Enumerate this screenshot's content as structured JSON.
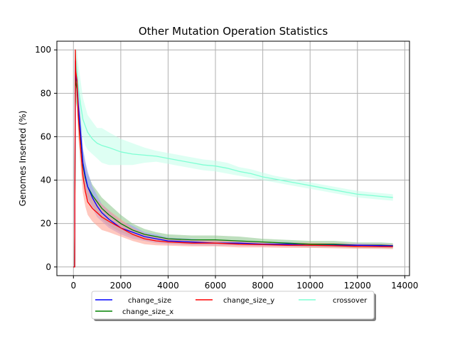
{
  "chart_data": {
    "type": "line",
    "title": "Other Mutation Operation Statistics",
    "xlabel": "",
    "ylabel": "Genomes Inserted (%)",
    "xlim": [
      -700,
      14200
    ],
    "ylim": [
      -4,
      104
    ],
    "xticks": [
      0,
      2000,
      4000,
      6000,
      8000,
      10000,
      12000,
      14000
    ],
    "yticks": [
      0,
      20,
      40,
      60,
      80,
      100
    ],
    "grid": true,
    "legend_position": "below-plot",
    "series": [
      {
        "name": "change_size",
        "color": "#0000ff",
        "band_color": "#9999ff",
        "x": [
          0,
          50,
          80,
          100,
          150,
          200,
          300,
          400,
          500,
          600,
          800,
          1000,
          1200,
          1500,
          2000,
          2500,
          3000,
          3500,
          4000,
          5000,
          6000,
          7000,
          8000,
          9000,
          10000,
          11000,
          12000,
          13000,
          13500
        ],
        "y": [
          0,
          0,
          95,
          88,
          85,
          75,
          62,
          48,
          42,
          37,
          32,
          28,
          25,
          22,
          18,
          16,
          14,
          13,
          12,
          11.5,
          11,
          11,
          10.5,
          10.5,
          10,
          10,
          10,
          9.8,
          9.7
        ],
        "band": [
          [
            0,
            0
          ],
          [
            0,
            0
          ],
          [
            86,
            100
          ],
          [
            80,
            94
          ],
          [
            77,
            92
          ],
          [
            67,
            83
          ],
          [
            54,
            70
          ],
          [
            41,
            55
          ],
          [
            35,
            49
          ],
          [
            31,
            44
          ],
          [
            27,
            37
          ],
          [
            23,
            33
          ],
          [
            21,
            29
          ],
          [
            18,
            26
          ],
          [
            15,
            21
          ],
          [
            13,
            19
          ],
          [
            12,
            16
          ],
          [
            11,
            15
          ],
          [
            10.5,
            13.5
          ],
          [
            10,
            13
          ],
          [
            9.8,
            12.2
          ],
          [
            9.8,
            12.2
          ],
          [
            9.5,
            11.5
          ],
          [
            9.5,
            11.5
          ],
          [
            9.2,
            10.8
          ],
          [
            9.2,
            10.8
          ],
          [
            9.2,
            10.8
          ],
          [
            9,
            10.6
          ],
          [
            9,
            10.4
          ]
        ]
      },
      {
        "name": "change_size_x",
        "color": "#008000",
        "band_color": "#88c488",
        "x": [
          0,
          50,
          80,
          100,
          150,
          200,
          300,
          400,
          500,
          600,
          800,
          1000,
          1200,
          1500,
          2000,
          2500,
          3000,
          3500,
          4000,
          5000,
          6000,
          7000,
          8000,
          9000,
          10000,
          11000,
          12000,
          13000,
          13500
        ],
        "y": [
          0,
          0,
          90,
          85,
          82,
          72,
          60,
          47,
          41,
          37,
          33,
          30,
          27,
          24,
          20,
          17,
          15,
          14,
          13,
          12.5,
          12.5,
          12,
          11.5,
          11,
          10.5,
          10.5,
          10,
          10,
          9.8
        ],
        "band": [
          [
            0,
            0
          ],
          [
            0,
            0
          ],
          [
            80,
            100
          ],
          [
            76,
            93
          ],
          [
            73,
            90
          ],
          [
            64,
            80
          ],
          [
            52,
            68
          ],
          [
            40,
            54
          ],
          [
            35,
            48
          ],
          [
            32,
            43
          ],
          [
            28,
            38
          ],
          [
            25,
            35
          ],
          [
            22,
            32
          ],
          [
            19,
            29
          ],
          [
            16,
            24
          ],
          [
            14,
            20
          ],
          [
            12.5,
            17.5
          ],
          [
            12,
            16
          ],
          [
            11,
            15
          ],
          [
            10.5,
            14.5
          ],
          [
            10.5,
            14.5
          ],
          [
            10,
            14
          ],
          [
            10,
            13
          ],
          [
            9.5,
            12.5
          ],
          [
            9,
            12
          ],
          [
            9,
            12
          ],
          [
            8.7,
            11.3
          ],
          [
            8.7,
            11.3
          ],
          [
            8.5,
            11
          ]
        ]
      },
      {
        "name": "change_size_y",
        "color": "#ff0000",
        "band_color": "#ff9a8a",
        "x": [
          0,
          50,
          80,
          100,
          150,
          200,
          300,
          400,
          500,
          600,
          800,
          1000,
          1200,
          1500,
          2000,
          2500,
          3000,
          3500,
          4000,
          5000,
          6000,
          7000,
          8000,
          9000,
          10000,
          11000,
          12000,
          13000,
          13500
        ],
        "y": [
          0,
          0,
          100,
          90,
          86,
          70,
          55,
          42,
          35,
          30,
          27,
          25,
          23,
          21,
          18,
          15,
          13,
          12,
          11.5,
          11,
          11,
          10.5,
          10.3,
          10,
          10,
          9.8,
          9.5,
          9.4,
          9.3
        ],
        "band": [
          [
            0,
            0
          ],
          [
            0,
            0
          ],
          [
            90,
            100
          ],
          [
            80,
            97
          ],
          [
            76,
            94
          ],
          [
            60,
            80
          ],
          [
            46,
            65
          ],
          [
            34,
            50
          ],
          [
            28,
            42
          ],
          [
            24,
            36
          ],
          [
            21,
            33
          ],
          [
            19,
            31
          ],
          [
            17,
            29
          ],
          [
            16,
            26
          ],
          [
            14,
            22
          ],
          [
            12,
            18
          ],
          [
            10.5,
            15.5
          ],
          [
            10,
            14
          ],
          [
            9.8,
            13.2
          ],
          [
            9.5,
            12.5
          ],
          [
            9.5,
            12.5
          ],
          [
            9,
            12
          ],
          [
            9,
            11.6
          ],
          [
            8.8,
            11.2
          ],
          [
            8.8,
            11.2
          ],
          [
            8.6,
            11
          ],
          [
            8.4,
            10.6
          ],
          [
            8.3,
            10.5
          ],
          [
            8.2,
            10.4
          ]
        ]
      },
      {
        "name": "crossover",
        "color": "#7fffd4",
        "band_color": "#c2ffea",
        "x": [
          0,
          50,
          80,
          100,
          150,
          200,
          300,
          400,
          500,
          600,
          800,
          1000,
          1200,
          1500,
          2000,
          2500,
          3000,
          3500,
          4000,
          4500,
          5000,
          5500,
          6000,
          6500,
          7000,
          7500,
          8000,
          8500,
          9000,
          9500,
          10000,
          10500,
          11000,
          11500,
          12000,
          12500,
          13000,
          13500
        ],
        "y": [
          0,
          0,
          100,
          95,
          90,
          83,
          75,
          68,
          65,
          62,
          59,
          57,
          56,
          55,
          53,
          52,
          51.5,
          51,
          50,
          49,
          48,
          47,
          46.5,
          45.5,
          44,
          43,
          41.5,
          40.5,
          39.5,
          38.5,
          37.5,
          36.5,
          35.5,
          34.5,
          33.5,
          33,
          32.5,
          32
        ],
        "band": [
          [
            0,
            0
          ],
          [
            0,
            0
          ],
          [
            100,
            100
          ],
          [
            88,
            100
          ],
          [
            82,
            100
          ],
          [
            74,
            94
          ],
          [
            65,
            86
          ],
          [
            60,
            78
          ],
          [
            56,
            74
          ],
          [
            54,
            70
          ],
          [
            52,
            67
          ],
          [
            50,
            64
          ],
          [
            48,
            64
          ],
          [
            47,
            62
          ],
          [
            47,
            59
          ],
          [
            47,
            57
          ],
          [
            48,
            55
          ],
          [
            48.5,
            53.5
          ],
          [
            47.5,
            52.5
          ],
          [
            46.5,
            51.5
          ],
          [
            45.5,
            50.5
          ],
          [
            44.5,
            49.5
          ],
          [
            44,
            49
          ],
          [
            43,
            48
          ],
          [
            42,
            46
          ],
          [
            41,
            45
          ],
          [
            40,
            43.5
          ],
          [
            39,
            42
          ],
          [
            38,
            41
          ],
          [
            37,
            40
          ],
          [
            36,
            39
          ],
          [
            35,
            38
          ],
          [
            34,
            37
          ],
          [
            33,
            36
          ],
          [
            32,
            35
          ],
          [
            31.5,
            34.5
          ],
          [
            31,
            34
          ],
          [
            30.5,
            33.5
          ]
        ]
      }
    ]
  }
}
